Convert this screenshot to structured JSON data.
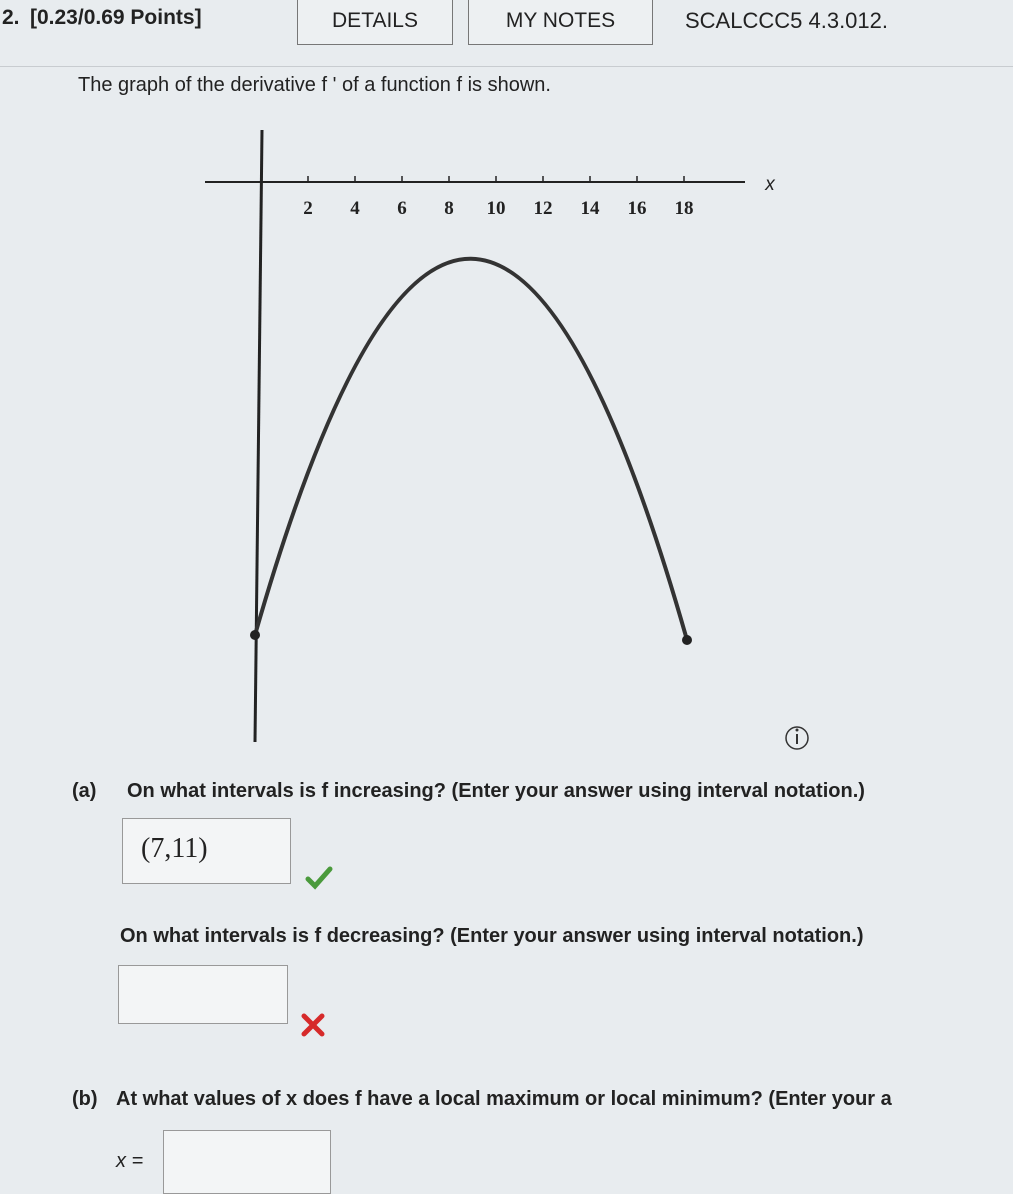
{
  "header": {
    "number": "2.",
    "points": "[0.23/0.69 Points]",
    "buttons": [
      "DETAILS",
      "MY NOTES"
    ],
    "code": "SCALCCC5 4.3.012."
  },
  "prompt": "The graph of the derivative f ' of a function f is shown.",
  "graph": {
    "x_tick_labels": [
      "2",
      "4",
      "6",
      "8",
      "10",
      "12",
      "14",
      "16",
      "18"
    ],
    "axis_label": "x"
  },
  "part_a": {
    "label": "(a)",
    "question": "On what intervals is f increasing? (Enter your answer using interval notation.)",
    "answer": "(7,11)",
    "question2": "On what intervals is f decreasing? (Enter your answer using interval notation.)"
  },
  "part_b": {
    "label": "(b)",
    "question": "At what values of x does f have a local maximum or local minimum? (Enter your a",
    "answer_prefix": "x ="
  }
}
